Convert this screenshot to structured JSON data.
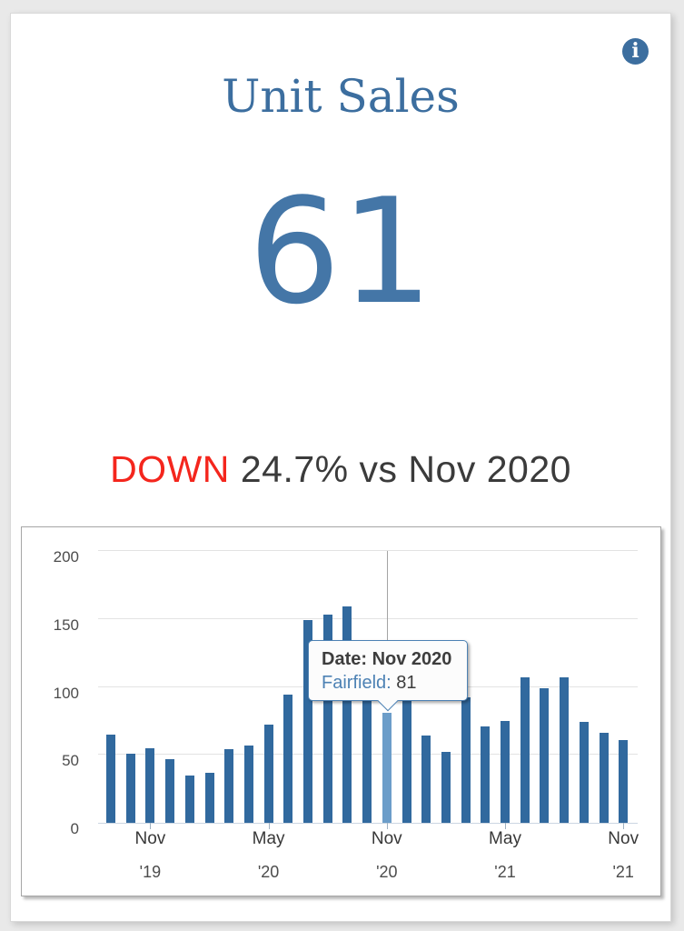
{
  "header": {
    "title": "Unit Sales"
  },
  "icons": {
    "info": {
      "glyph": "i"
    }
  },
  "kpi": {
    "value": "61",
    "direction": "DOWN",
    "comparison": "24.7% vs Nov 2020"
  },
  "colors": {
    "accent": "#3c6e9f",
    "kpi_value": "#4476a7",
    "down_red": "#f4261d",
    "bar": "#31699e",
    "bar_highlight": "#6c9dc9"
  },
  "chart_data": {
    "type": "bar",
    "title": "",
    "xlabel": "",
    "ylabel": "",
    "ylim": [
      0,
      200
    ],
    "yticks": [
      0,
      50,
      100,
      150,
      200
    ],
    "grid": true,
    "legend_position": "none",
    "x": [
      "Sep 2019",
      "Oct 2019",
      "Nov 2019",
      "Dec 2019",
      "Jan 2020",
      "Feb 2020",
      "Mar 2020",
      "Apr 2020",
      "May 2020",
      "Jun 2020",
      "Jul 2020",
      "Aug 2020",
      "Sep 2020",
      "Oct 2020",
      "Nov 2020",
      "Dec 2020",
      "Jan 2021",
      "Feb 2021",
      "Mar 2021",
      "Apr 2021",
      "May 2021",
      "Jun 2021",
      "Jul 2021",
      "Aug 2021",
      "Sep 2021",
      "Oct 2021",
      "Nov 2021"
    ],
    "series": [
      {
        "name": "Fairfield",
        "values": [
          65,
          51,
          55,
          47,
          35,
          37,
          54,
          57,
          72,
          94,
          149,
          153,
          159,
          120,
          81,
          95,
          64,
          52,
          92,
          71,
          75,
          107,
          99,
          107,
          74,
          66,
          61
        ]
      }
    ],
    "xticks": [
      {
        "index": 2,
        "month": "Nov",
        "year": "'19"
      },
      {
        "index": 8,
        "month": "May",
        "year": "'20"
      },
      {
        "index": 14,
        "month": "Nov",
        "year": "'20"
      },
      {
        "index": 20,
        "month": "May",
        "year": "'21"
      },
      {
        "index": 26,
        "month": "Nov",
        "year": "'21"
      }
    ],
    "highlight_index": 14,
    "tooltip": {
      "date_label": "Date: Nov 2020",
      "series_label": "Fairfield:",
      "value": "81"
    }
  }
}
